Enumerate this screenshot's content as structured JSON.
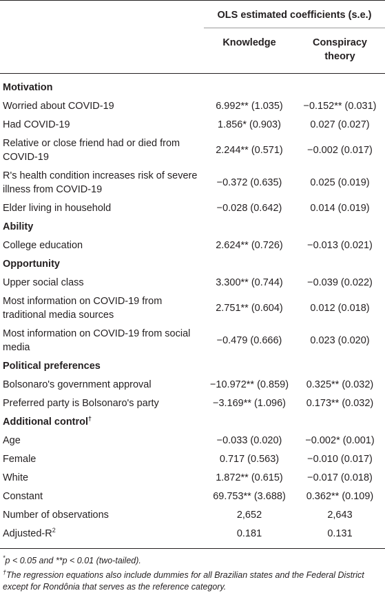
{
  "header": {
    "group_title": "OLS estimated coefficients (s.e.)",
    "col_knowledge": "Knowledge",
    "col_conspiracy_line1": "Conspiracy",
    "col_conspiracy_line2": "theory"
  },
  "rows": [
    {
      "type": "section",
      "label": "Motivation"
    },
    {
      "type": "data",
      "label": "Worried about COVID-19",
      "k": "6.992** (1.035)",
      "c": "−0.152** (0.031)"
    },
    {
      "type": "data",
      "label": "Had COVID-19",
      "k": "1.856* (0.903)",
      "c": "0.027 (0.027)"
    },
    {
      "type": "data",
      "label": "Relative or close friend had or died from COVID-19",
      "k": "2.244** (0.571)",
      "c": "−0.002 (0.017)"
    },
    {
      "type": "data",
      "label": "R's health condition increases risk of severe illness from COVID-19",
      "k": "−0.372 (0.635)",
      "c": "0.025 (0.019)"
    },
    {
      "type": "data",
      "label": "Elder living in household",
      "k": "−0.028 (0.642)",
      "c": "0.014 (0.019)"
    },
    {
      "type": "section",
      "label": "Ability"
    },
    {
      "type": "data",
      "label": "College education",
      "k": "2.624** (0.726)",
      "c": "−0.013 (0.021)"
    },
    {
      "type": "section",
      "label": "Opportunity"
    },
    {
      "type": "data",
      "label": "Upper social class",
      "k": "3.300** (0.744)",
      "c": "−0.039 (0.022)"
    },
    {
      "type": "data",
      "label": "Most information on COVID-19 from traditional media sources",
      "k": "2.751** (0.604)",
      "c": "0.012 (0.018)"
    },
    {
      "type": "data",
      "label": "Most information on COVID-19 from social media",
      "k": "−0.479 (0.666)",
      "c": "0.023 (0.020)"
    },
    {
      "type": "section",
      "label": "Political preferences"
    },
    {
      "type": "data",
      "label": "Bolsonaro's government approval",
      "k": "−10.972** (0.859)",
      "c": "0.325** (0.032)"
    },
    {
      "type": "data",
      "label": "Preferred party is Bolsonaro's party",
      "k": "−3.169** (1.096)",
      "c": "0.173** (0.032)"
    },
    {
      "type": "section",
      "label": "Additional control",
      "sup": "†"
    },
    {
      "type": "data",
      "label": "Age",
      "k": "−0.033 (0.020)",
      "c": "−0.002* (0.001)"
    },
    {
      "type": "data",
      "label": "Female",
      "k": "0.717 (0.563)",
      "c": "−0.010 (0.017)"
    },
    {
      "type": "data",
      "label": "White",
      "k": "1.872** (0.615)",
      "c": "−0.017 (0.018)"
    },
    {
      "type": "data",
      "label": "Constant",
      "k": "69.753** (3.688)",
      "c": "0.362** (0.109)"
    },
    {
      "type": "data",
      "label": "Number of observations",
      "k": "2,652",
      "c": "2,643"
    },
    {
      "type": "data",
      "label": "Adjusted-R",
      "label_sup": "2",
      "k": "0.181",
      "c": "0.131"
    }
  ],
  "footnotes": {
    "note1_sup": "*",
    "note1_text": "p < 0.05 and **p < 0.01 (two-tailed).",
    "note2_sup": "†",
    "note2_text": "The regression equations also include dummies for all Brazilian states and the Federal District except for Rondônia that serves as the reference category."
  }
}
